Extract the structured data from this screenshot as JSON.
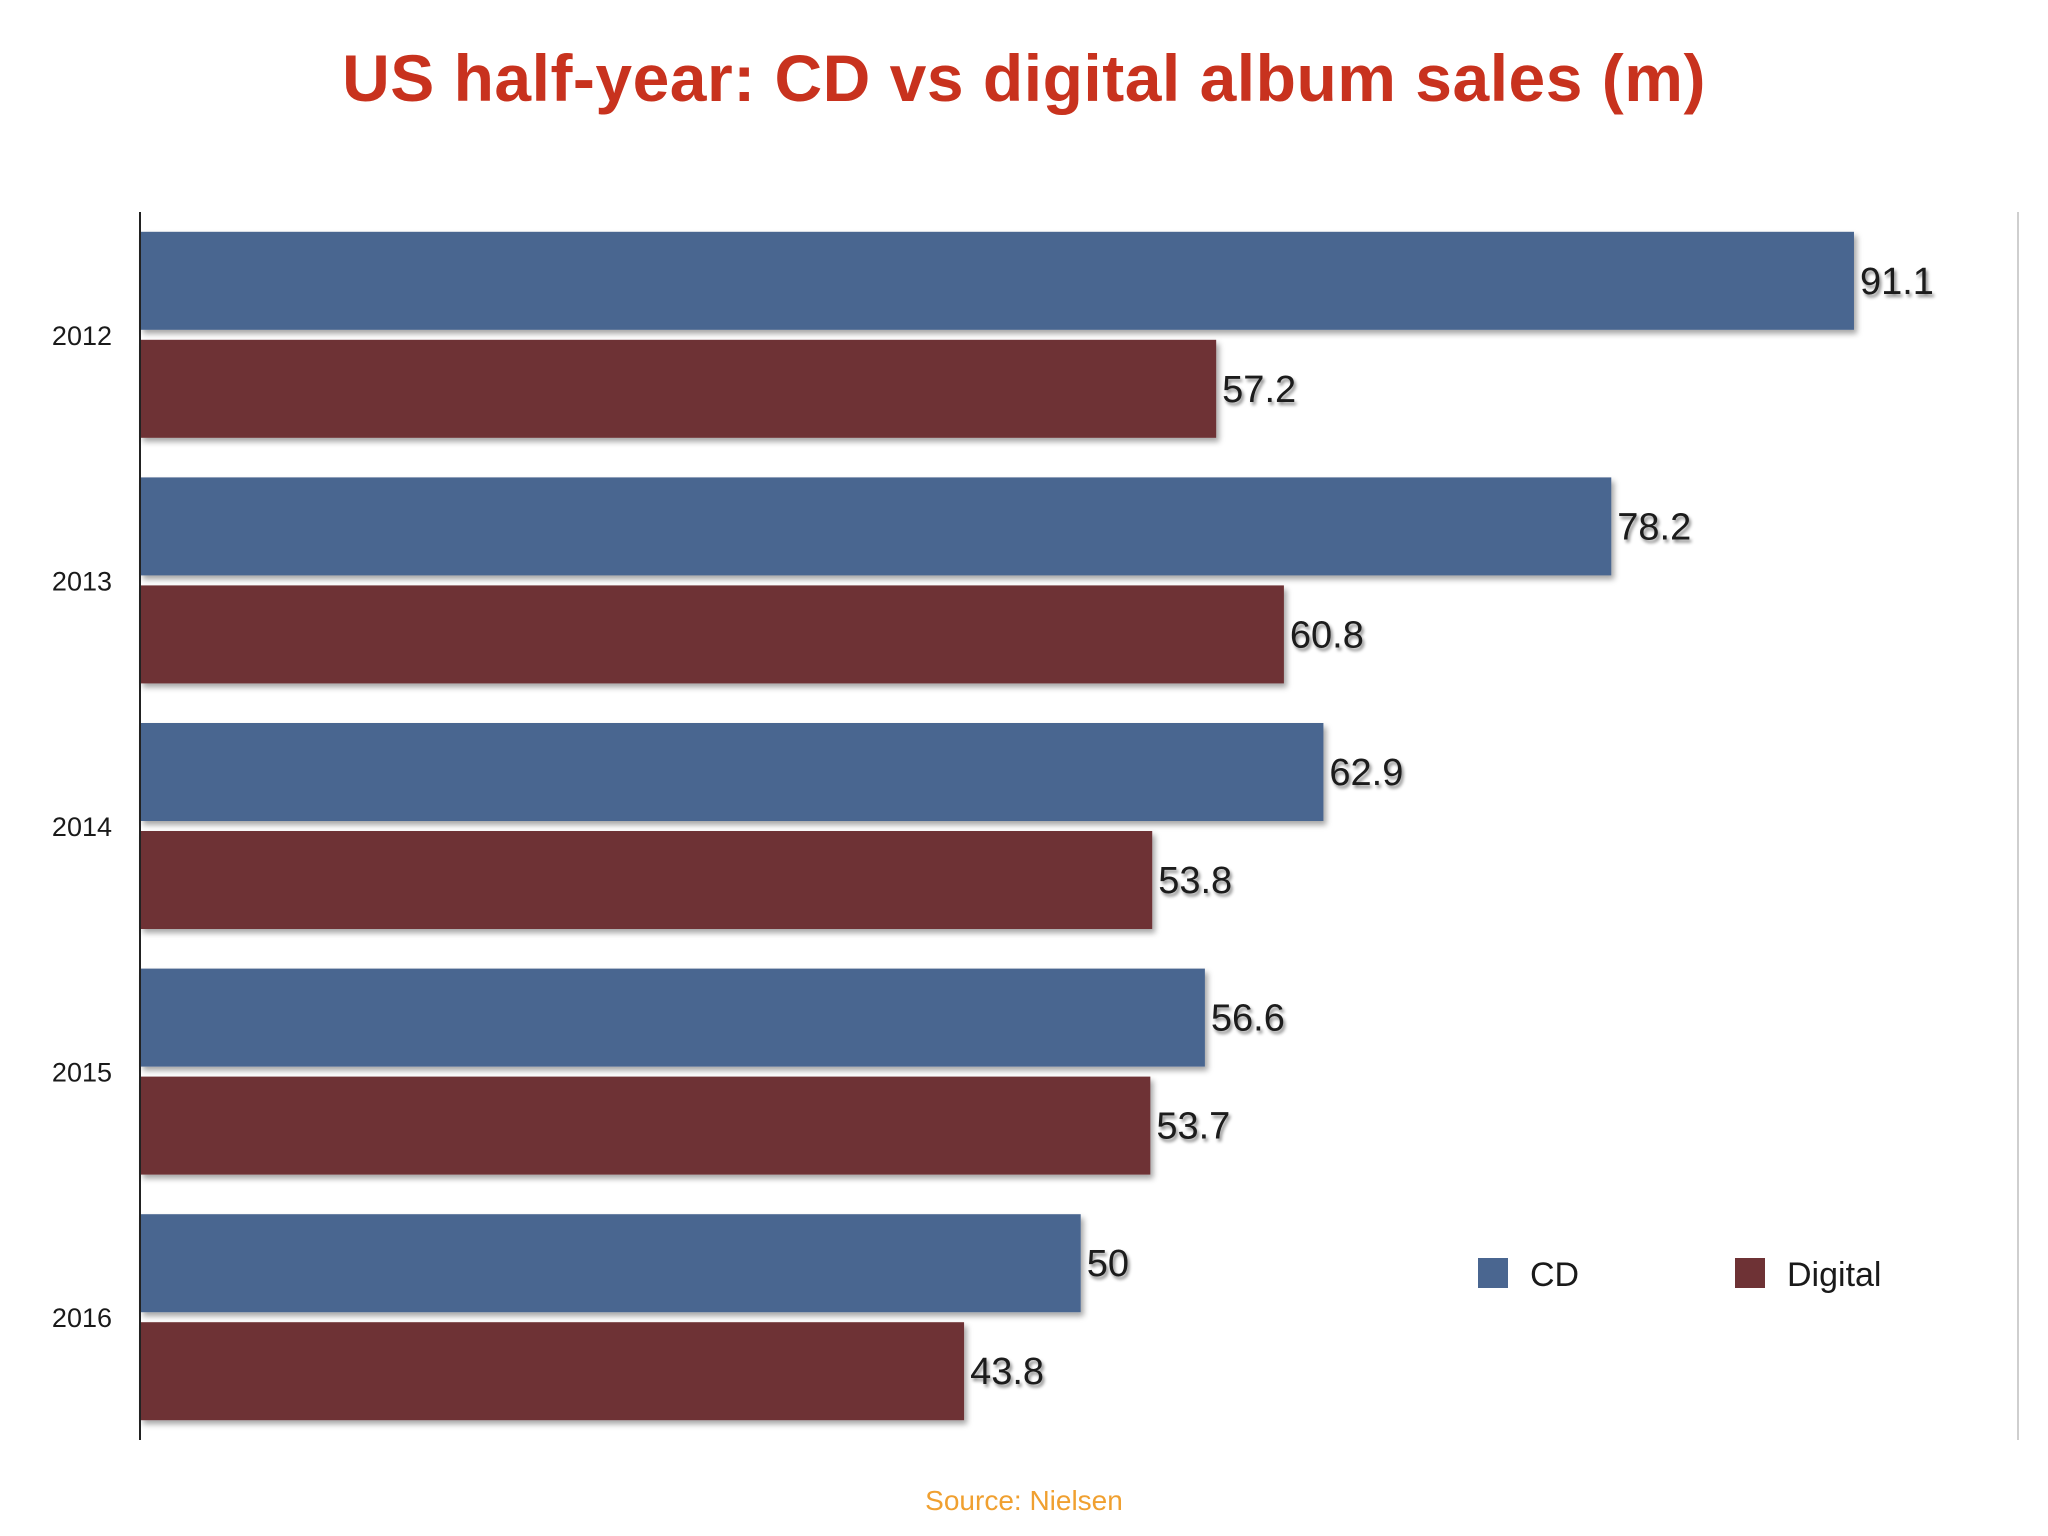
{
  "chart_data": {
    "type": "bar",
    "orientation": "horizontal",
    "title": "US half-year: CD vs digital album sales (m)",
    "categories": [
      "2012",
      "2013",
      "2014",
      "2015",
      "2016"
    ],
    "series": [
      {
        "name": "CD",
        "values": [
          91.1,
          78.2,
          62.9,
          56.6,
          50
        ],
        "color": "#4a6690"
      },
      {
        "name": "Digital",
        "values": [
          57.2,
          60.8,
          53.8,
          53.7,
          43.8
        ],
        "color": "#6e3235"
      }
    ],
    "value_labels": {
      "CD": [
        "91.1",
        "78.2",
        "62.9",
        "56.6",
        "50"
      ],
      "Digital": [
        "57.2",
        "60.8",
        "53.8",
        "53.7",
        "43.8"
      ]
    },
    "xlim": [
      0,
      100
    ],
    "grid": false,
    "legend_position": "bottom-right",
    "source": "Source: Nielsen"
  },
  "colors": {
    "title": "#c8321e",
    "source": "#f0a030",
    "axis": "#222222",
    "frame": "#cfcfcf"
  }
}
